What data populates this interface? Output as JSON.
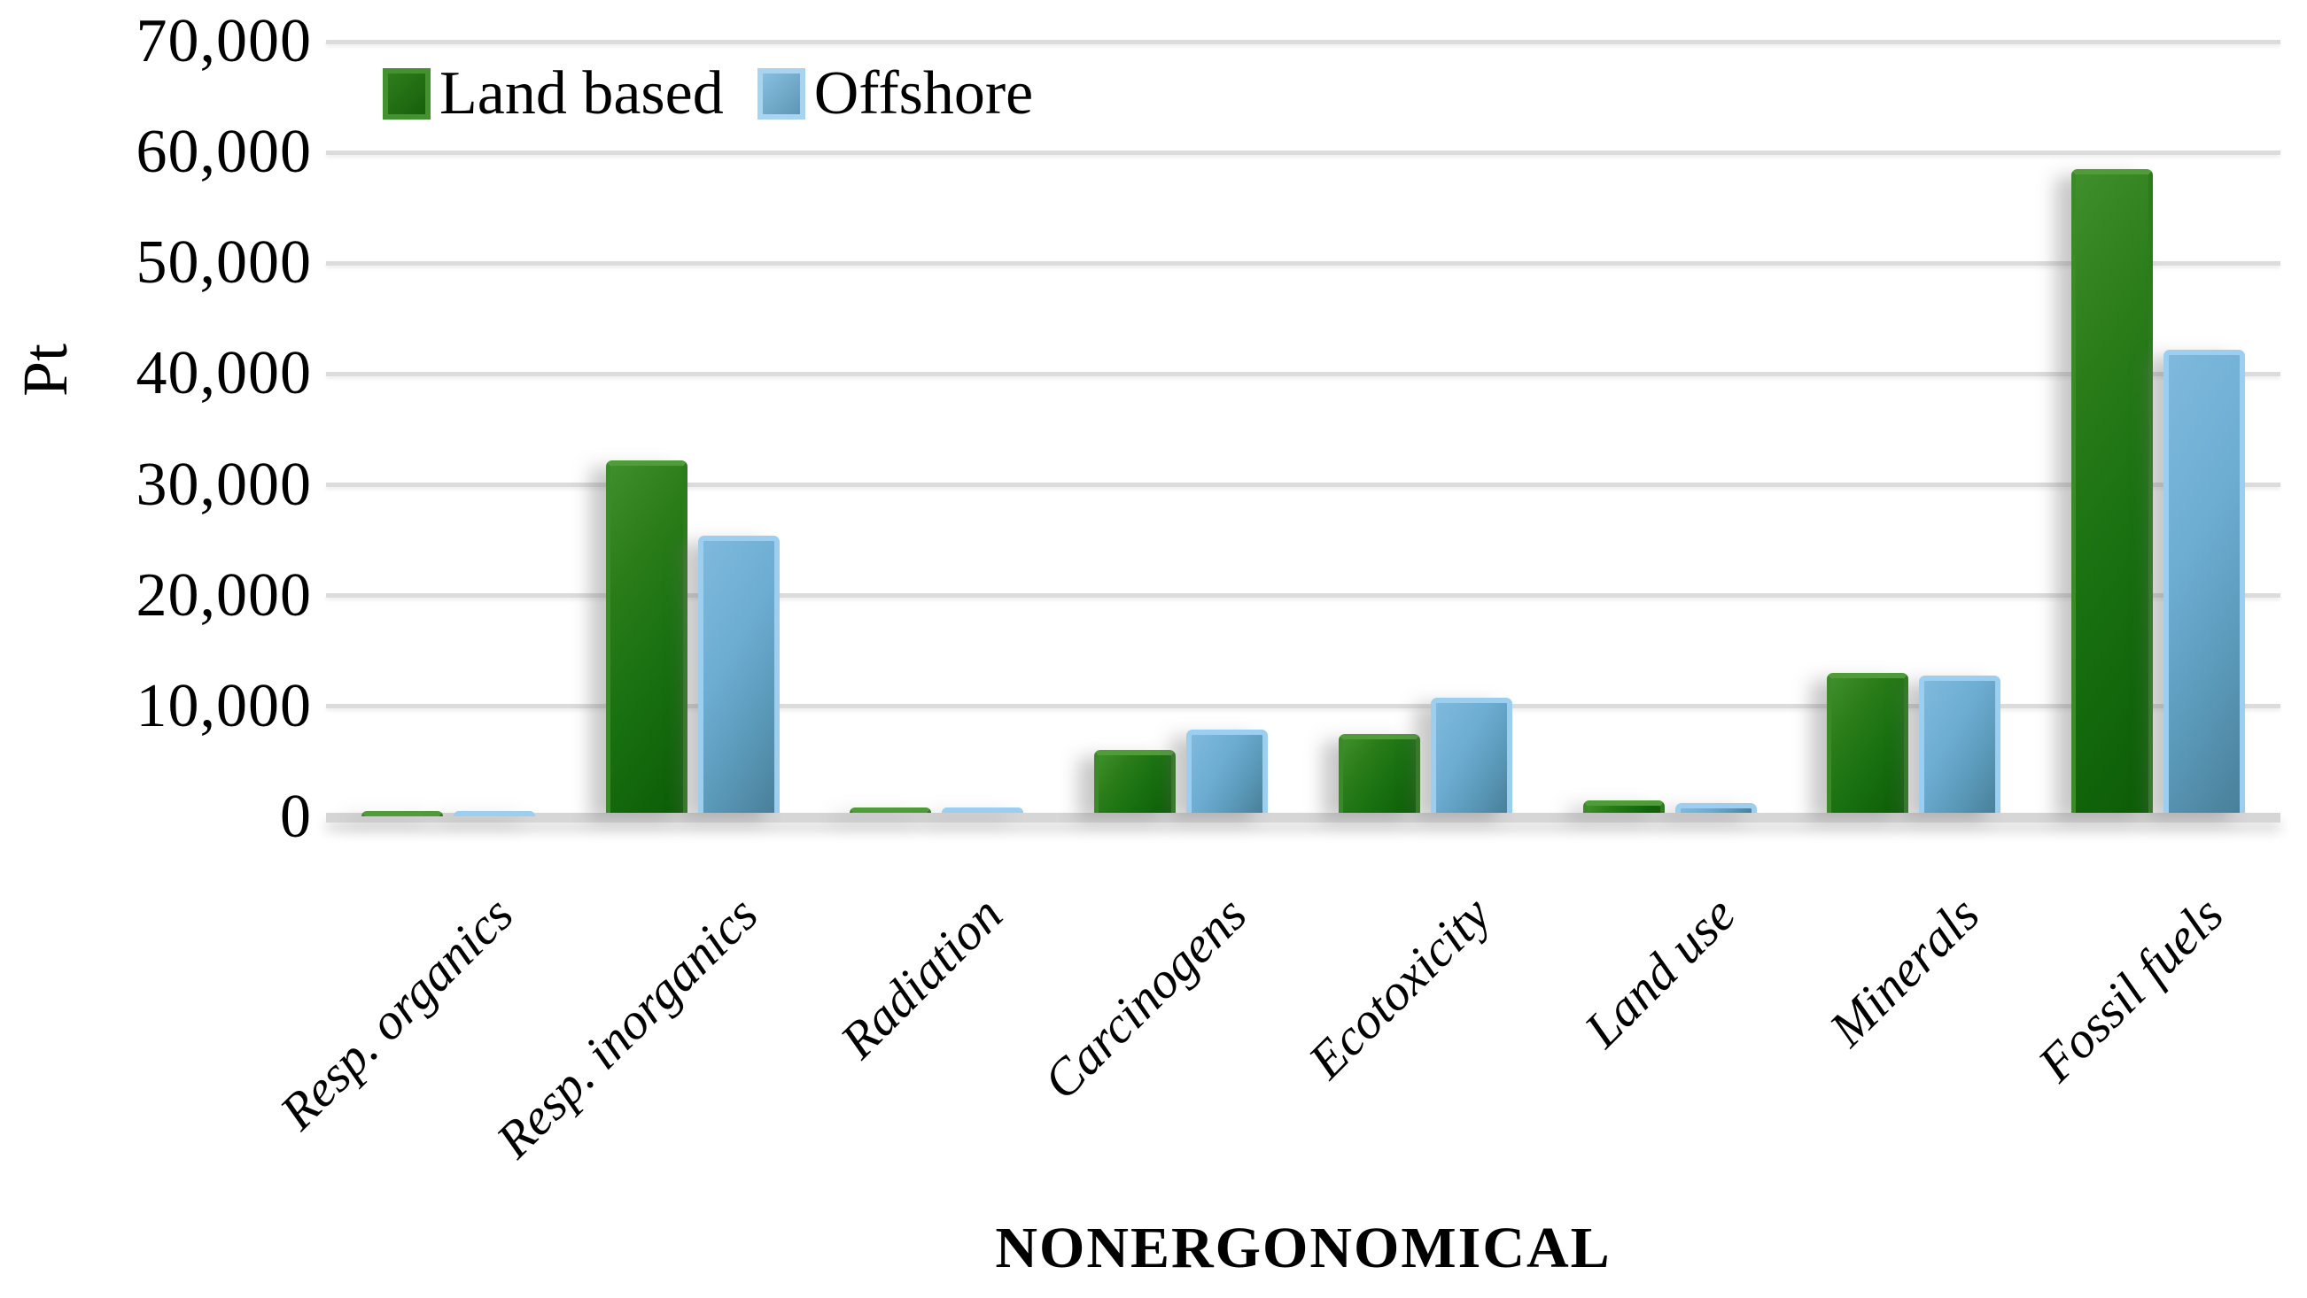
{
  "chart_data": {
    "type": "bar",
    "title": "",
    "xlabel": "NONERGONOMICAL",
    "ylabel": "Pt",
    "categories": [
      "Resp. organics",
      "Resp. inorganics",
      "Radiation",
      "Carcinogens",
      "Ecotoxicity",
      "Land use",
      "Minerals",
      "Fossil fuels"
    ],
    "series": [
      {
        "name": "Land based",
        "color": "#2a7a18",
        "values": [
          120,
          31800,
          500,
          5700,
          7100,
          1100,
          12600,
          58100
        ]
      },
      {
        "name": "Offshore",
        "color": "#6fb0d4",
        "values": [
          120,
          25000,
          450,
          7500,
          10400,
          850,
          12400,
          41800
        ]
      }
    ],
    "ylim": [
      0,
      70000
    ],
    "ytick_step": 10000,
    "y_tick_labels": [
      "0",
      "10,000",
      "20,000",
      "30,000",
      "40,000",
      "50,000",
      "60,000",
      "70,000"
    ],
    "grid": "horizontal-only",
    "legend_position": "top-left"
  },
  "legend": {
    "items": [
      {
        "label": "Land based",
        "swatch_color": "#2a7a18"
      },
      {
        "label": "Offshore",
        "swatch_color": "#87bfe1"
      }
    ]
  },
  "axes": {
    "y_title": "Pt",
    "x_title": "NONERGONOMICAL"
  },
  "colors": {
    "land_based_fill": "#2a7c19",
    "land_based_edge": "#4f9c39",
    "offshore_fill": "#6dadd2",
    "offshore_edge": "#9ccfef",
    "gridline": "#dcdcdc",
    "baseline": "#d6d6d6",
    "background": "#ffffff",
    "text": "#000000"
  }
}
